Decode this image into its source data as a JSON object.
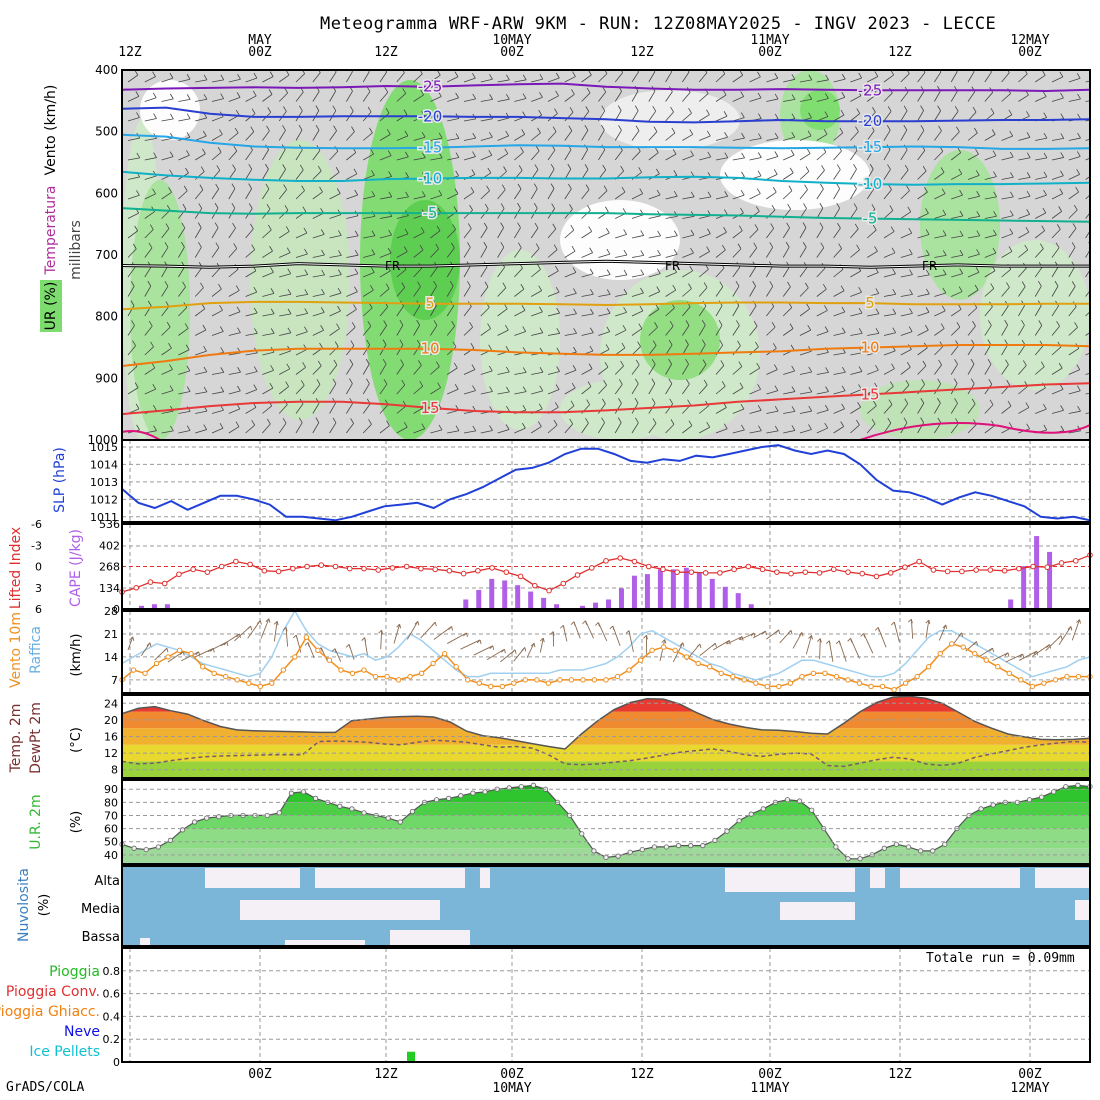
{
  "title": "Meteogramma WRF-ARW 9KM - RUN: 12Z08MAY2025 - INGV 2023 - LECCE",
  "credit": "GrADS/COLA",
  "colors": {
    "ur_green": "#7ddc6e",
    "ur_light": "#cfe9c8",
    "ur_grey": "#d8d8d8",
    "slp": "#2040d8",
    "li": "#e03030",
    "cape": "#b060e8",
    "wind10": "#f09020",
    "gust": "#a0d0f0",
    "temp_fill_top": "#e83030",
    "dew": "#7a5a6a",
    "rh_fill": "#33c033",
    "cloud_blue": "#7bb6d9",
    "cloud_white": "#f4f0f6",
    "rain": "#22cc22"
  },
  "chart_data": [
    {
      "name": "vertical-profile",
      "type": "heatmap",
      "ylabel_left": "Vento (km/h)",
      "ylabel_mid": "millibars",
      "ylabel_temp": "Temperatura",
      "ylabel_ur": "UR (%)",
      "y_ticks": [
        "400",
        "500",
        "600",
        "700",
        "800",
        "900",
        "1000"
      ],
      "y_range_hPa": [
        400,
        1000
      ],
      "top_axis": [
        {
          "label": "12Z",
          "date": ""
        },
        {
          "label": "00Z",
          "date": "MAY"
        },
        {
          "label": "12Z",
          "date": ""
        },
        {
          "label": "00Z",
          "date": "10MAY"
        },
        {
          "label": "12Z",
          "date": ""
        },
        {
          "label": "00Z",
          "date": "11MAY"
        },
        {
          "label": "12Z",
          "date": ""
        },
        {
          "label": "00Z",
          "date": "12MAY"
        }
      ],
      "isotherms": [
        {
          "value": -25,
          "label": "-25",
          "color": "#7b18b8",
          "p": [
            432,
            430,
            429,
            428,
            429,
            428,
            426,
            427,
            425,
            423,
            422,
            427,
            430,
            432,
            432,
            431,
            432,
            433,
            433,
            433,
            433,
            434,
            432
          ]
        },
        {
          "value": -20,
          "label": "-20",
          "color": "#2a3fd0",
          "p": [
            463,
            461,
            471,
            476,
            476,
            475,
            475,
            475,
            476,
            476,
            478,
            480,
            484,
            485,
            483,
            481,
            483,
            483,
            483,
            482,
            481,
            481,
            480
          ]
        },
        {
          "value": -15,
          "label": "-15",
          "color": "#26a6e6",
          "p": [
            505,
            508,
            518,
            524,
            526,
            527,
            527,
            526,
            524,
            522,
            523,
            525,
            525,
            525,
            526,
            527,
            526,
            525,
            524,
            525,
            528,
            528,
            527
          ]
        },
        {
          "value": -10,
          "label": "-10",
          "color": "#10b0c8",
          "p": [
            565,
            571,
            575,
            578,
            580,
            580,
            577,
            576,
            575,
            575,
            576,
            576,
            574,
            573,
            575,
            580,
            583,
            585,
            586,
            585,
            585,
            584,
            583
          ]
        },
        {
          "value": -5,
          "label": "-5",
          "color": "#10b090",
          "p": [
            624,
            628,
            632,
            633,
            632,
            632,
            632,
            632,
            632,
            632,
            632,
            632,
            634,
            635,
            636,
            638,
            640,
            641,
            642,
            643,
            644,
            645,
            646
          ]
        },
        {
          "value": 5,
          "label": "5",
          "color": "#e0a010",
          "p": [
            788,
            784,
            778,
            776,
            776,
            777,
            778,
            779,
            779,
            779,
            780,
            781,
            780,
            778,
            777,
            777,
            778,
            778,
            780,
            780,
            780,
            779,
            779
          ]
        },
        {
          "value": 10,
          "label": "10",
          "color": "#f07a10",
          "p": [
            880,
            872,
            862,
            855,
            852,
            852,
            852,
            852,
            854,
            858,
            860,
            862,
            862,
            860,
            858,
            856,
            852,
            850,
            848,
            846,
            846,
            846,
            848
          ]
        },
        {
          "value": 15,
          "label": "15",
          "color": "#e83838",
          "p": [
            958,
            952,
            945,
            940,
            938,
            938,
            942,
            948,
            953,
            955,
            955,
            952,
            948,
            944,
            938,
            934,
            930,
            926,
            922,
            918,
            914,
            910,
            908
          ]
        }
      ],
      "freezing_label": "FR",
      "freezing_level": [
        717,
        718,
        720,
        718,
        714,
        716,
        718,
        718,
        716,
        714,
        712,
        710,
        712,
        714,
        716,
        718,
        718,
        720,
        718,
        716,
        718,
        718,
        718
      ]
    },
    {
      "name": "slp",
      "type": "line",
      "ylabel": "SLP (hPa)",
      "y_ticks": [
        1011,
        1012,
        1013,
        1014,
        1015
      ],
      "ylim": [
        1010.7,
        1015.4
      ],
      "values": [
        1012.6,
        1011.8,
        1011.5,
        1011.9,
        1011.4,
        1011.8,
        1012.2,
        1012.2,
        1012.0,
        1011.7,
        1011.0,
        1011.0,
        1010.9,
        1010.8,
        1011.0,
        1011.3,
        1011.6,
        1011.7,
        1011.8,
        1011.5,
        1012.0,
        1012.3,
        1012.7,
        1013.2,
        1013.7,
        1013.8,
        1014.1,
        1014.6,
        1014.9,
        1014.9,
        1014.6,
        1014.2,
        1014.1,
        1014.3,
        1014.2,
        1014.5,
        1014.4,
        1014.6,
        1014.8,
        1015.0,
        1015.1,
        1014.8,
        1014.6,
        1014.8,
        1014.6,
        1014.0,
        1013.1,
        1012.5,
        1012.4,
        1012.1,
        1011.7,
        1012.1,
        1012.4,
        1012.2,
        1011.9,
        1011.6,
        1011.0,
        1010.9,
        1011.0,
        1010.8
      ]
    },
    {
      "name": "cape-li",
      "type": "bar",
      "ylabel_left": "Lifted Index",
      "ylabel_right": "CAPE (J/kg)",
      "li_ticks": [
        "-6",
        "-3",
        "0",
        "3",
        "6"
      ],
      "li_range": [
        -6,
        6
      ],
      "cape_ticks": [
        "536",
        "402",
        "268",
        "134",
        "0"
      ],
      "cape_range": [
        0,
        536
      ],
      "li": [
        3.6,
        3.0,
        2.2,
        2.4,
        1.1,
        0.4,
        0.8,
        0.0,
        -0.7,
        -0.3,
        0.6,
        0.7,
        0.3,
        0.0,
        -0.2,
        0.0,
        0.3,
        0.3,
        0.5,
        0.2,
        0.0,
        0.3,
        0.4,
        0.6,
        1.0,
        0.6,
        0.2,
        0.8,
        1.4,
        2.7,
        3.4,
        2.4,
        1.2,
        0.2,
        -0.8,
        -1.2,
        -0.7,
        0.0,
        0.4,
        0.8,
        0.8,
        0.9,
        0.9,
        0.4,
        0.0,
        0.4,
        0.8,
        1.0,
        0.8,
        0.9,
        0.4,
        0.8,
        1.0,
        1.4,
        0.9,
        0.1,
        -0.7,
        0.5,
        0.7,
        0.7,
        0.5,
        0.5,
        0.6,
        0.3,
        0.0,
        0.1,
        -0.5,
        -0.8,
        -1.6
      ],
      "cape": [
        0,
        20,
        30,
        30,
        0,
        0,
        0,
        0,
        0,
        0,
        0,
        0,
        0,
        0,
        0,
        0,
        0,
        0,
        0,
        0,
        0,
        0,
        0,
        0,
        0,
        0,
        60,
        120,
        190,
        180,
        150,
        110,
        70,
        30,
        0,
        20,
        40,
        60,
        130,
        210,
        220,
        250,
        250,
        260,
        230,
        190,
        140,
        100,
        30,
        0,
        0,
        0,
        0,
        0,
        0,
        0,
        0,
        0,
        0,
        0,
        0,
        0,
        0,
        0,
        0,
        0,
        0,
        0,
        60,
        270,
        460,
        360,
        0,
        0
      ],
      "cape_cols": 138
    },
    {
      "name": "wind10",
      "type": "line",
      "ylabel": "Vento 10m",
      "ylabel2": "Raffica",
      "unit": "(km/h)",
      "y_ticks": [
        7,
        14,
        21,
        28
      ],
      "ylim": [
        3,
        28
      ],
      "wind": [
        7,
        10,
        9,
        12,
        14,
        16,
        15,
        11,
        9,
        8,
        7,
        6,
        5,
        6,
        10,
        14,
        20,
        16,
        13,
        10,
        9,
        10,
        8,
        8,
        7,
        8,
        9,
        12,
        15,
        11,
        7,
        6,
        5,
        5,
        6,
        7,
        7,
        6,
        7,
        7,
        7,
        7,
        7,
        8,
        10,
        13,
        16,
        17,
        16,
        14,
        12,
        11,
        9,
        8,
        7,
        6,
        5,
        5,
        6,
        8,
        9,
        9,
        8,
        7,
        6,
        5,
        5,
        4,
        6,
        8,
        11,
        15,
        18,
        17,
        15,
        13,
        11,
        9,
        7,
        5,
        6,
        7,
        8,
        8,
        8
      ],
      "gust": [
        12,
        14,
        16,
        18,
        17,
        16,
        14,
        12,
        11,
        10,
        9,
        8,
        9,
        14,
        22,
        28,
        22,
        18,
        16,
        15,
        14,
        15,
        13,
        14,
        17,
        21,
        19,
        16,
        13,
        10,
        8,
        8,
        9,
        9,
        9,
        9,
        9,
        9,
        10,
        10,
        10,
        11,
        12,
        14,
        17,
        21,
        22,
        20,
        18,
        16,
        14,
        12,
        11,
        9,
        8,
        7,
        8,
        9,
        11,
        13,
        13,
        12,
        11,
        10,
        9,
        8,
        8,
        9,
        12,
        16,
        20,
        22,
        22,
        20,
        18,
        16,
        14,
        12,
        10,
        8,
        9,
        10,
        11,
        13,
        14
      ]
    },
    {
      "name": "temp2m",
      "type": "area",
      "ylabel": "Temp. 2m",
      "ylabel2": "DewPt 2m",
      "unit": "(°C)",
      "y_ticks": [
        8,
        12,
        16,
        20,
        24
      ],
      "ylim": [
        6,
        26
      ],
      "temp": [
        21.5,
        22.8,
        23.2,
        22.2,
        21.4,
        19.8,
        18.4,
        17.6,
        17.4,
        17.3,
        17.2,
        17.1,
        17.0,
        17.0,
        19.8,
        20.2,
        20.6,
        20.8,
        20.9,
        20.7,
        19.5,
        17.3,
        16.2,
        15.7,
        15.0,
        14.3,
        13.6,
        13.0,
        16.6,
        19.8,
        22.5,
        24.2,
        25.1,
        25.0,
        23.8,
        21.8,
        20.1,
        19.0,
        18.2,
        17.6,
        17.5,
        17.2,
        16.8,
        16.6,
        19.2,
        22.0,
        24.2,
        25.5,
        25.7,
        25.2,
        24.0,
        21.8,
        19.6,
        18.0,
        16.6,
        15.9,
        15.3,
        15.2,
        15.3,
        15.6
      ],
      "dew": [
        10.0,
        9.4,
        9.6,
        10.2,
        10.7,
        11.1,
        11.3,
        11.4,
        11.5,
        11.6,
        11.6,
        11.6,
        14.8,
        14.9,
        14.8,
        14.6,
        14.2,
        14.0,
        14.6,
        15.1,
        14.9,
        14.6,
        14.0,
        13.4,
        13.6,
        13.2,
        11.6,
        9.4,
        9.2,
        9.4,
        9.8,
        10.2,
        10.8,
        11.5,
        12.2,
        12.6,
        13.0,
        12.4,
        11.6,
        11.2,
        11.7,
        12.0,
        11.8,
        9.0,
        8.8,
        9.6,
        10.4,
        11.0,
        10.6,
        9.4,
        9.0,
        9.6,
        11.0,
        11.8,
        12.6,
        13.4,
        14.0,
        14.4,
        14.8,
        14.6
      ]
    },
    {
      "name": "rh2m",
      "type": "area",
      "ylabel": "U.R. 2m",
      "unit": "(%)",
      "y_ticks": [
        40,
        50,
        60,
        70,
        80,
        90
      ],
      "ylim": [
        33,
        97
      ],
      "values": [
        48,
        45,
        44,
        46,
        51,
        59,
        65,
        68,
        69,
        70,
        70,
        70,
        70,
        72,
        87,
        88,
        83,
        80,
        77,
        75,
        72,
        70,
        68,
        65,
        73,
        80,
        82,
        83,
        85,
        87,
        88,
        90,
        91,
        92,
        93,
        90,
        80,
        70,
        56,
        43,
        38,
        39,
        42,
        44,
        46,
        46,
        47,
        47,
        47,
        51,
        58,
        66,
        71,
        75,
        80,
        82,
        81,
        74,
        60,
        46,
        37,
        37,
        40,
        45,
        48,
        46,
        43,
        43,
        48,
        60,
        70,
        75,
        78,
        80,
        80,
        82,
        84,
        88,
        92,
        93,
        92
      ]
    },
    {
      "name": "cloud-cover",
      "type": "area",
      "ylabel": "Nuvolosita",
      "unit": "(%)",
      "levels": [
        "Alta",
        "Media",
        "Bassa"
      ]
    },
    {
      "name": "precip",
      "type": "bar",
      "labels": [
        "Pioggia",
        "Pioggia Conv.",
        "Pioggia Ghiacc.",
        "Neve",
        "Ice Pellets"
      ],
      "label_colors": [
        "#22bb22",
        "#e03030",
        "#f08010",
        "#1010e0",
        "#10c0d0"
      ],
      "y_ticks": [
        "0",
        "0.2",
        "0.4",
        "0.6",
        "0.8"
      ],
      "ylim": [
        0,
        1.0
      ],
      "total_label": "Totale run = 0.09mm",
      "bottom_axis": [
        {
          "label": "00Z",
          "date": ""
        },
        {
          "label": "12Z",
          "date": ""
        },
        {
          "label": "00Z",
          "date": "10MAY"
        },
        {
          "label": "12Z",
          "date": ""
        },
        {
          "label": "00Z",
          "date": "11MAY"
        },
        {
          "label": "12Z",
          "date": ""
        },
        {
          "label": "00Z",
          "date": "12MAY"
        }
      ],
      "bar_value": 0.09
    }
  ]
}
